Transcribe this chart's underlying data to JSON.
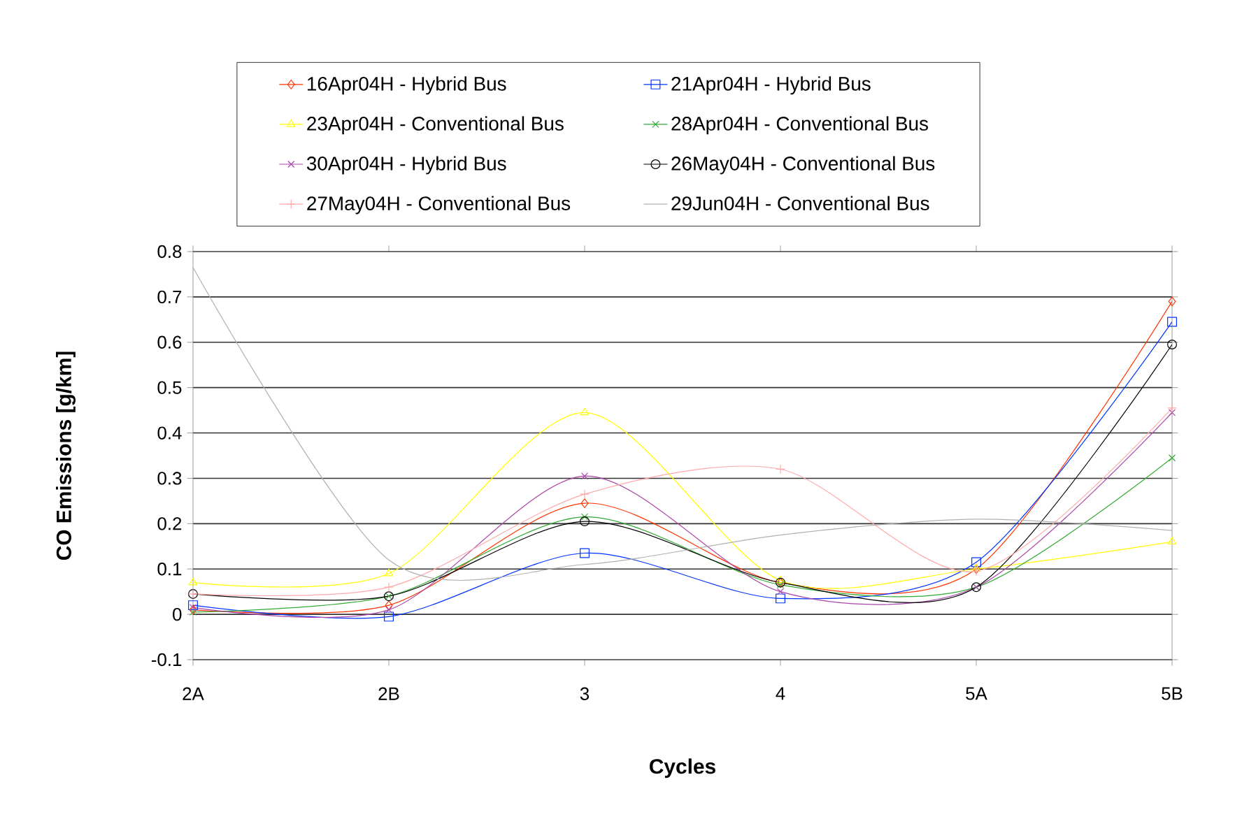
{
  "chart_data": {
    "type": "line",
    "xlabel": "Cycles",
    "ylabel": "CO Emissions [g/km]",
    "categories": [
      "2A",
      "2B",
      "3",
      "4",
      "5A",
      "5B"
    ],
    "ylim": [
      -0.1,
      0.8
    ],
    "yticks": [
      -0.1,
      0,
      0.1,
      0.2,
      0.3,
      0.4,
      0.5,
      0.6,
      0.7,
      0.8
    ],
    "grid": "y",
    "legend": "top",
    "series": [
      {
        "name": "16Apr04H - Hybrid Bus",
        "color": "#ff3300",
        "marker": "diamond",
        "values": [
          0.01,
          0.02,
          0.245,
          0.07,
          0.1,
          0.69
        ]
      },
      {
        "name": "21Apr04H - Hybrid Bus",
        "color": "#0033ff",
        "marker": "square",
        "values": [
          0.02,
          -0.005,
          0.135,
          0.035,
          0.115,
          0.645
        ]
      },
      {
        "name": "23Apr04H - Conventional Bus",
        "color": "#ffff00",
        "marker": "triangle",
        "values": [
          0.07,
          0.09,
          0.445,
          0.075,
          0.1,
          0.16
        ]
      },
      {
        "name": "28Apr04H - Conventional Bus",
        "color": "#33aa33",
        "marker": "cross",
        "values": [
          0.005,
          0.04,
          0.215,
          0.065,
          0.06,
          0.345
        ]
      },
      {
        "name": "30Apr04H - Hybrid Bus",
        "color": "#aa44aa",
        "marker": "cross",
        "values": [
          0.015,
          0.01,
          0.305,
          0.05,
          0.06,
          0.445
        ]
      },
      {
        "name": "26May04H - Conventional Bus",
        "color": "#000000",
        "marker": "circle",
        "values": [
          0.045,
          0.04,
          0.205,
          0.07,
          0.06,
          0.595
        ]
      },
      {
        "name": "27May04H - Conventional Bus",
        "color": "#ffaaaa",
        "marker": "plus",
        "values": [
          0.045,
          0.06,
          0.265,
          0.32,
          0.095,
          0.455
        ]
      },
      {
        "name": "29Jun04H - Conventional Bus",
        "color": "#b0b0b0",
        "marker": "none",
        "values": [
          0.765,
          0.12,
          0.11,
          0.175,
          0.21,
          0.185
        ]
      }
    ]
  }
}
